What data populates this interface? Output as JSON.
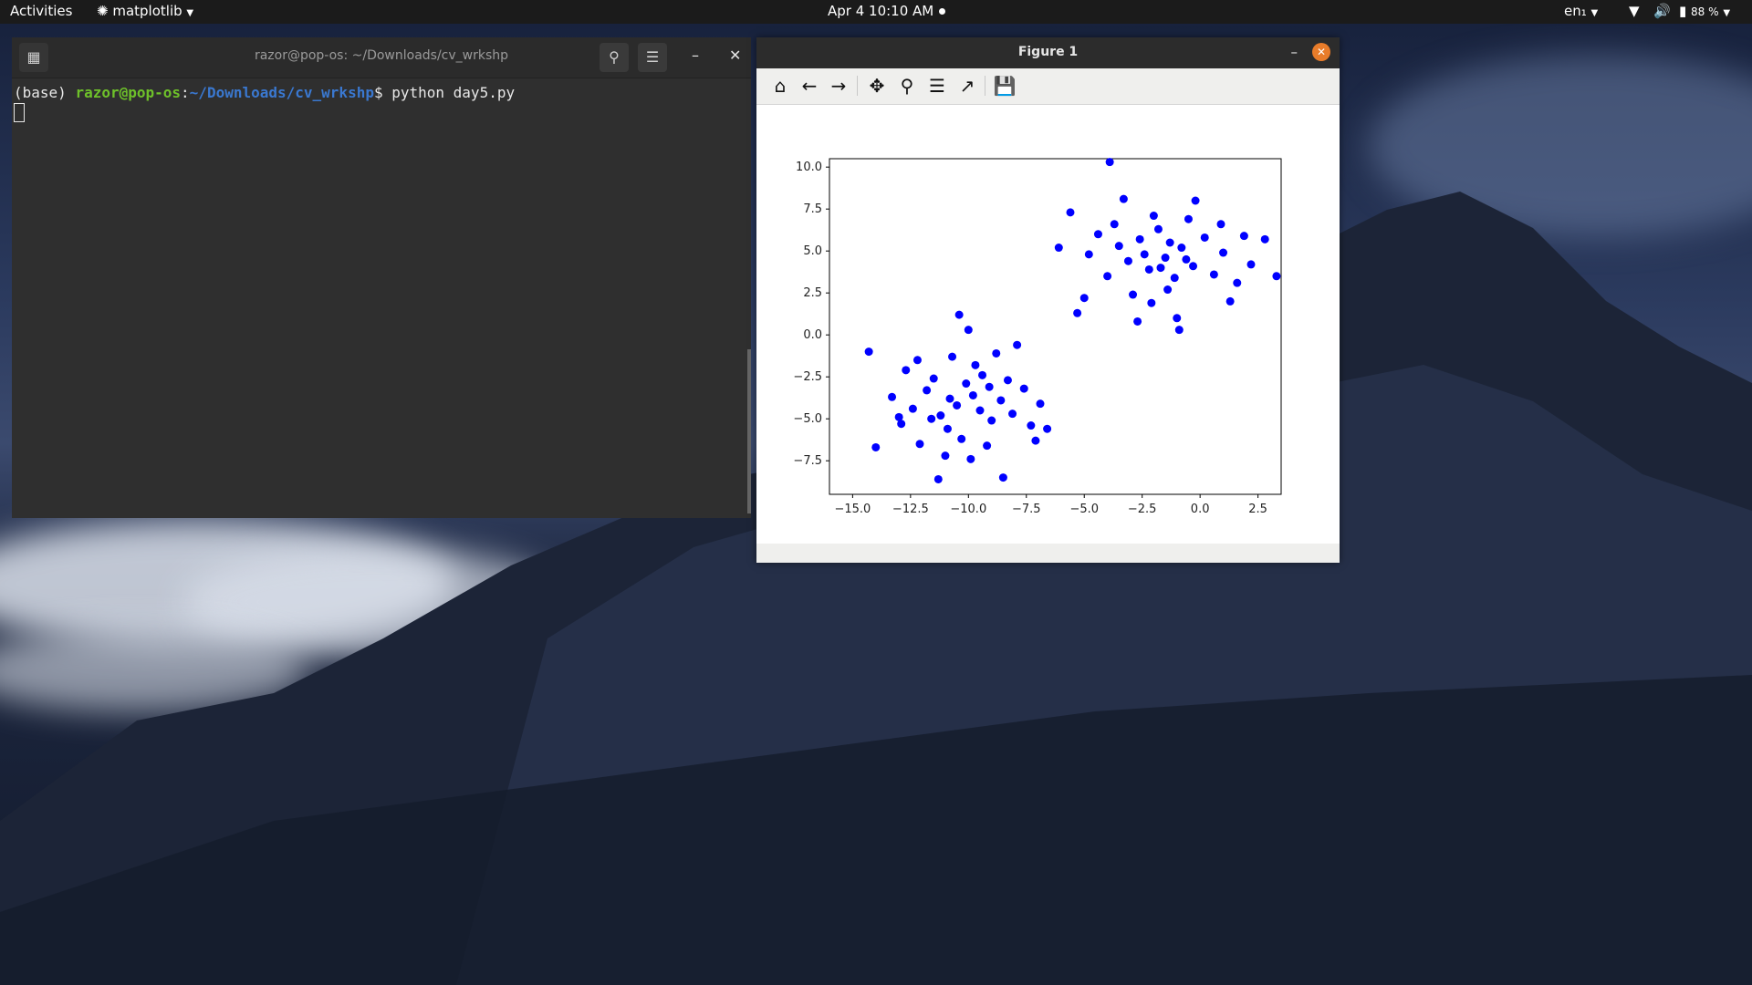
{
  "topbar": {
    "activities": "Activities",
    "app_menu": "matplotlib",
    "clock": "Apr 4  10:10 AM",
    "lang": "en₁",
    "battery": "88 %"
  },
  "terminal": {
    "title": "razor@pop-os: ~/Downloads/cv_wrkshp",
    "prompt_env": "(base) ",
    "prompt_user": "razor@pop-os",
    "prompt_sep": ":",
    "prompt_path": "~/Downloads/cv_wrkshp",
    "prompt_end": "$ ",
    "command": "python day5.py"
  },
  "figure": {
    "title": "Figure 1",
    "toolbar": [
      "home-icon",
      "back-icon",
      "forward-icon",
      "pan-icon",
      "zoom-icon",
      "configure-subplots-icon",
      "edit-axis-icon",
      "save-icon"
    ]
  },
  "chart_data": {
    "type": "scatter",
    "title": "",
    "xlabel": "",
    "ylabel": "",
    "xlim": [
      -16.0,
      3.5
    ],
    "ylim": [
      -9.5,
      10.5
    ],
    "xticks": [
      "−15.0",
      "−12.5",
      "−10.0",
      "−7.5",
      "−5.0",
      "−2.5",
      "0.0",
      "2.5"
    ],
    "xtick_values": [
      -15.0,
      -12.5,
      -10.0,
      -7.5,
      -5.0,
      -2.5,
      0.0,
      2.5
    ],
    "yticks": [
      "−7.5",
      "−5.0",
      "−2.5",
      "0.0",
      "2.5",
      "5.0",
      "7.5",
      "10.0"
    ],
    "ytick_values": [
      -7.5,
      -5.0,
      -2.5,
      0.0,
      2.5,
      5.0,
      7.5,
      10.0
    ],
    "grid": false,
    "color": "#0000ff",
    "series": [
      {
        "values": [
          {
            "x": -10.5,
            "y": -4.2
          },
          {
            "x": -9.8,
            "y": -3.6
          },
          {
            "x": -11.2,
            "y": -4.8
          },
          {
            "x": -9.0,
            "y": -5.1
          },
          {
            "x": -10.1,
            "y": -2.9
          },
          {
            "x": -11.8,
            "y": -3.3
          },
          {
            "x": -8.6,
            "y": -3.9
          },
          {
            "x": -10.9,
            "y": -5.6
          },
          {
            "x": -9.4,
            "y": -2.4
          },
          {
            "x": -12.4,
            "y": -4.4
          },
          {
            "x": -8.1,
            "y": -4.7
          },
          {
            "x": -10.3,
            "y": -6.2
          },
          {
            "x": -11.5,
            "y": -2.6
          },
          {
            "x": -9.7,
            "y": -1.8
          },
          {
            "x": -12.9,
            "y": -5.3
          },
          {
            "x": -7.6,
            "y": -3.2
          },
          {
            "x": -10.7,
            "y": -1.3
          },
          {
            "x": -9.2,
            "y": -6.6
          },
          {
            "x": -13.3,
            "y": -3.7
          },
          {
            "x": -7.3,
            "y": -5.4
          },
          {
            "x": -11.0,
            "y": -7.2
          },
          {
            "x": -8.8,
            "y": -1.1
          },
          {
            "x": -12.1,
            "y": -6.5
          },
          {
            "x": -6.9,
            "y": -4.1
          },
          {
            "x": -10.0,
            "y": 0.3
          },
          {
            "x": -14.3,
            "y": -1.0
          },
          {
            "x": -14.0,
            "y": -6.7
          },
          {
            "x": -11.3,
            "y": -8.6
          },
          {
            "x": -8.5,
            "y": -8.5
          },
          {
            "x": -6.6,
            "y": -5.6
          },
          {
            "x": -7.9,
            "y": -0.6
          },
          {
            "x": -10.4,
            "y": 1.2
          },
          {
            "x": -12.7,
            "y": -2.1
          },
          {
            "x": -9.5,
            "y": -4.5
          },
          {
            "x": -10.8,
            "y": -3.8
          },
          {
            "x": -9.1,
            "y": -3.1
          },
          {
            "x": -11.6,
            "y": -5.0
          },
          {
            "x": -8.3,
            "y": -2.7
          },
          {
            "x": -13.0,
            "y": -4.9
          },
          {
            "x": -9.9,
            "y": -7.4
          },
          {
            "x": -12.2,
            "y": -1.5
          },
          {
            "x": -7.1,
            "y": -6.3
          }
        ]
      },
      {
        "values": [
          {
            "x": -1.5,
            "y": 4.6
          },
          {
            "x": -0.8,
            "y": 5.2
          },
          {
            "x": -2.2,
            "y": 3.9
          },
          {
            "x": -1.1,
            "y": 3.4
          },
          {
            "x": -2.6,
            "y": 5.7
          },
          {
            "x": -0.3,
            "y": 4.1
          },
          {
            "x": -1.8,
            "y": 6.3
          },
          {
            "x": -3.1,
            "y": 4.4
          },
          {
            "x": 0.2,
            "y": 5.8
          },
          {
            "x": -1.4,
            "y": 2.7
          },
          {
            "x": -3.5,
            "y": 5.3
          },
          {
            "x": 0.6,
            "y": 3.6
          },
          {
            "x": -2.0,
            "y": 7.1
          },
          {
            "x": -4.0,
            "y": 3.5
          },
          {
            "x": 1.0,
            "y": 4.9
          },
          {
            "x": -0.5,
            "y": 6.9
          },
          {
            "x": -2.9,
            "y": 2.4
          },
          {
            "x": -4.4,
            "y": 6.0
          },
          {
            "x": 1.6,
            "y": 3.1
          },
          {
            "x": -1.0,
            "y": 1.0
          },
          {
            "x": -3.3,
            "y": 8.1
          },
          {
            "x": 1.9,
            "y": 5.9
          },
          {
            "x": -5.0,
            "y": 2.2
          },
          {
            "x": -0.2,
            "y": 8.0
          },
          {
            "x": -4.8,
            "y": 4.8
          },
          {
            "x": 3.3,
            "y": 3.5
          },
          {
            "x": 2.8,
            "y": 5.7
          },
          {
            "x": -3.9,
            "y": 10.3
          },
          {
            "x": -5.6,
            "y": 7.3
          },
          {
            "x": -6.1,
            "y": 5.2
          },
          {
            "x": -5.3,
            "y": 1.3
          },
          {
            "x": -2.7,
            "y": 0.8
          },
          {
            "x": -0.9,
            "y": 0.3
          },
          {
            "x": 1.3,
            "y": 2.0
          },
          {
            "x": -1.7,
            "y": 4.0
          },
          {
            "x": -2.4,
            "y": 4.8
          },
          {
            "x": -0.6,
            "y": 4.5
          },
          {
            "x": -1.3,
            "y": 5.5
          },
          {
            "x": -3.7,
            "y": 6.6
          },
          {
            "x": 0.9,
            "y": 6.6
          },
          {
            "x": -2.1,
            "y": 1.9
          },
          {
            "x": 2.2,
            "y": 4.2
          }
        ]
      }
    ]
  }
}
